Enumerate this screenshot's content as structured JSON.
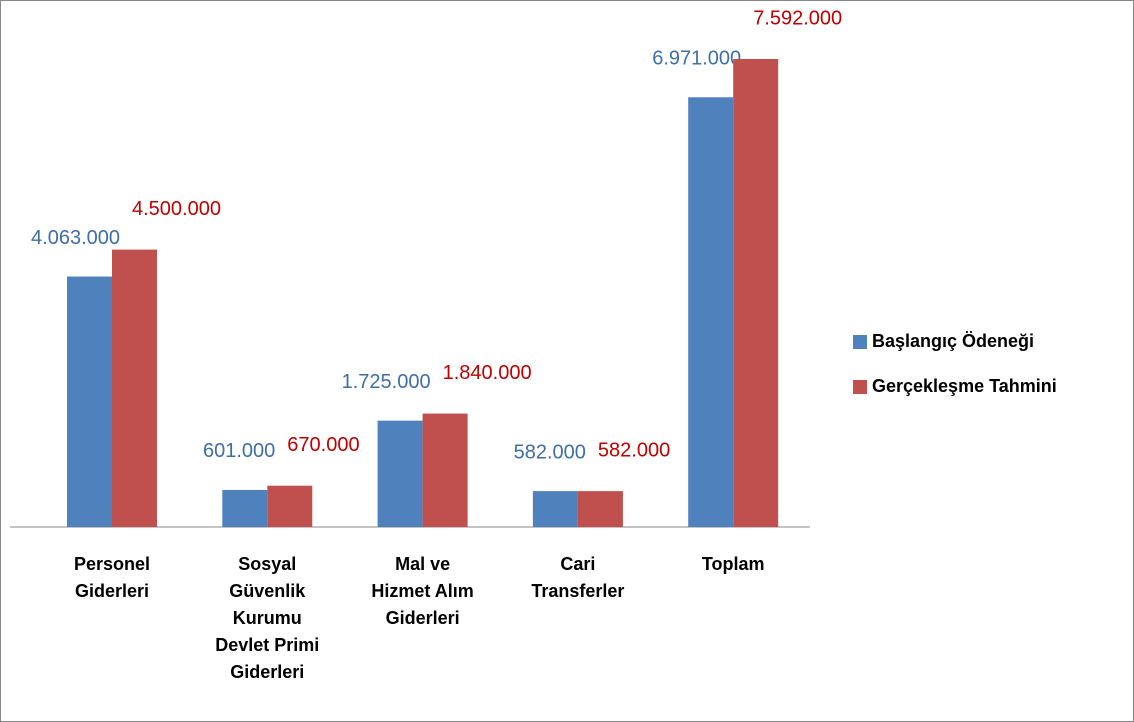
{
  "chart_data": {
    "type": "bar",
    "categories": [
      "Personel Giderleri",
      "Sosyal Güvenlik Kurumu Devlet Primi Giderleri",
      "Mal ve Hizmet Alım Giderleri",
      "Cari Transferler",
      "Toplam"
    ],
    "series": [
      {
        "name": "Başlangıç Ödeneği",
        "color": "#4f81bd",
        "label_color": "#3e6ea6",
        "values": [
          4063000,
          601000,
          1725000,
          582000,
          6971000
        ],
        "value_labels": [
          "4.063.000",
          "601.000",
          "1.725.000",
          "582.000",
          "6.971.000"
        ]
      },
      {
        "name": "Gerçekleşme Tahmini",
        "color": "#c0504d",
        "label_color": "#c00000",
        "values": [
          4500000,
          670000,
          1840000,
          582000,
          7592000
        ],
        "value_labels": [
          "4.500.000",
          "670.000",
          "1.840.000",
          "582.000",
          "7.592.000"
        ]
      }
    ]
  }
}
